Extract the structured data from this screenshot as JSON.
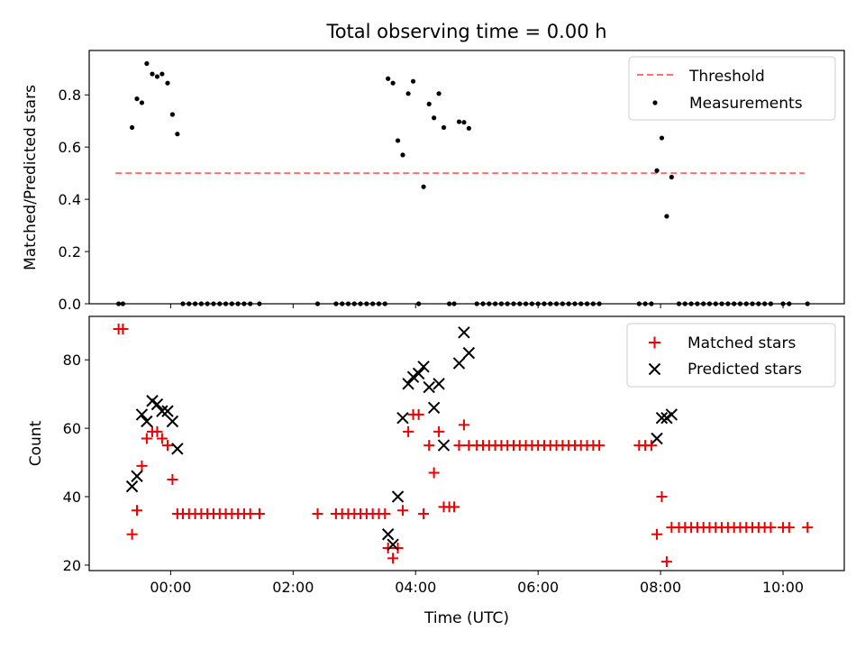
{
  "chart_data": {
    "type": "scatter",
    "title": "Total observing time = 0.00 h",
    "x_axis": {
      "label": "Time (UTC)",
      "unit": "hours",
      "range": [
        -1.33,
        11.0
      ],
      "ticks": [
        0,
        2,
        4,
        6,
        8,
        10
      ],
      "tick_labels": [
        "00:00",
        "02:00",
        "04:00",
        "06:00",
        "08:00",
        "10:00"
      ]
    },
    "panels": [
      {
        "name": "ratio",
        "ylabel": "Matched/Predicted stars",
        "ylim": [
          0,
          0.97
        ],
        "yticks": [
          0.0,
          0.2,
          0.4,
          0.6,
          0.8
        ],
        "ytick_labels": [
          "0.0",
          "0.2",
          "0.4",
          "0.6",
          "0.8"
        ],
        "legend_position": "top-right",
        "threshold": {
          "name": "Threshold",
          "value": 0.5,
          "x_range": [
            -0.9,
            10.35
          ],
          "color": "#ff7070"
        },
        "series": [
          {
            "name": "Measurements",
            "marker": "dot",
            "color": "#000000",
            "points": [
              [
                -0.85,
                0
              ],
              [
                -0.78,
                0
              ],
              [
                -0.63,
                0.675
              ],
              [
                -0.55,
                0.785
              ],
              [
                -0.47,
                0.77
              ],
              [
                -0.39,
                0.92
              ],
              [
                -0.3,
                0.88
              ],
              [
                -0.22,
                0.87
              ],
              [
                -0.14,
                0.88
              ],
              [
                -0.05,
                0.845
              ],
              [
                0.03,
                0.725
              ],
              [
                0.11,
                0.65
              ],
              [
                0.2,
                0
              ],
              [
                0.3,
                0
              ],
              [
                0.4,
                0
              ],
              [
                0.5,
                0
              ],
              [
                0.6,
                0
              ],
              [
                0.7,
                0
              ],
              [
                0.8,
                0
              ],
              [
                0.9,
                0
              ],
              [
                1.0,
                0
              ],
              [
                1.1,
                0
              ],
              [
                1.2,
                0
              ],
              [
                1.3,
                0
              ],
              [
                1.45,
                0
              ],
              [
                2.4,
                0
              ],
              [
                2.7,
                0
              ],
              [
                2.8,
                0
              ],
              [
                2.9,
                0
              ],
              [
                3.0,
                0
              ],
              [
                3.1,
                0
              ],
              [
                3.2,
                0
              ],
              [
                3.3,
                0
              ],
              [
                3.4,
                0
              ],
              [
                3.5,
                0
              ],
              [
                3.55,
                0.862
              ],
              [
                3.63,
                0.845
              ],
              [
                3.71,
                0.625
              ],
              [
                3.79,
                0.57
              ],
              [
                3.88,
                0.805
              ],
              [
                3.96,
                0.852
              ],
              [
                4.05,
                0
              ],
              [
                4.13,
                0.448
              ],
              [
                4.22,
                0.765
              ],
              [
                4.3,
                0.712
              ],
              [
                4.38,
                0.805
              ],
              [
                4.46,
                0.675
              ],
              [
                4.55,
                0
              ],
              [
                4.63,
                0
              ],
              [
                4.71,
                0.697
              ],
              [
                4.79,
                0.695
              ],
              [
                4.87,
                0.672
              ],
              [
                5.0,
                0
              ],
              [
                5.1,
                0
              ],
              [
                5.2,
                0
              ],
              [
                5.3,
                0
              ],
              [
                5.4,
                0
              ],
              [
                5.5,
                0
              ],
              [
                5.6,
                0
              ],
              [
                5.7,
                0
              ],
              [
                5.8,
                0
              ],
              [
                5.9,
                0
              ],
              [
                6.0,
                0
              ],
              [
                6.1,
                0
              ],
              [
                6.2,
                0
              ],
              [
                6.3,
                0
              ],
              [
                6.4,
                0
              ],
              [
                6.5,
                0
              ],
              [
                6.6,
                0
              ],
              [
                6.7,
                0
              ],
              [
                6.8,
                0
              ],
              [
                6.9,
                0
              ],
              [
                7.0,
                0
              ],
              [
                7.65,
                0
              ],
              [
                7.75,
                0
              ],
              [
                7.85,
                0
              ],
              [
                7.94,
                0.51
              ],
              [
                8.02,
                0.635
              ],
              [
                8.1,
                0.335
              ],
              [
                8.18,
                0.485
              ],
              [
                8.3,
                0
              ],
              [
                8.4,
                0
              ],
              [
                8.5,
                0
              ],
              [
                8.6,
                0
              ],
              [
                8.7,
                0
              ],
              [
                8.8,
                0
              ],
              [
                8.9,
                0
              ],
              [
                9.0,
                0
              ],
              [
                9.1,
                0
              ],
              [
                9.2,
                0
              ],
              [
                9.3,
                0
              ],
              [
                9.4,
                0
              ],
              [
                9.5,
                0
              ],
              [
                9.6,
                0
              ],
              [
                9.7,
                0
              ],
              [
                9.8,
                0
              ],
              [
                10.0,
                0
              ],
              [
                10.1,
                0
              ],
              [
                10.4,
                0
              ]
            ]
          }
        ]
      },
      {
        "name": "counts",
        "ylabel": "Count",
        "ylim": [
          18.4,
          92.7
        ],
        "yticks": [
          20,
          40,
          60,
          80
        ],
        "ytick_labels": [
          "20",
          "40",
          "60",
          "80"
        ],
        "legend_position": "top-right",
        "series": [
          {
            "name": "Matched stars",
            "marker": "plus",
            "color": "#ee0000",
            "points": [
              [
                -0.85,
                89
              ],
              [
                -0.78,
                89
              ],
              [
                -0.63,
                29
              ],
              [
                -0.55,
                36
              ],
              [
                -0.47,
                49
              ],
              [
                -0.39,
                57
              ],
              [
                -0.3,
                59
              ],
              [
                -0.22,
                59
              ],
              [
                -0.14,
                57
              ],
              [
                -0.05,
                55
              ],
              [
                0.03,
                45
              ],
              [
                0.11,
                35
              ],
              [
                0.2,
                35
              ],
              [
                0.3,
                35
              ],
              [
                0.4,
                35
              ],
              [
                0.5,
                35
              ],
              [
                0.6,
                35
              ],
              [
                0.7,
                35
              ],
              [
                0.8,
                35
              ],
              [
                0.9,
                35
              ],
              [
                1.0,
                35
              ],
              [
                1.1,
                35
              ],
              [
                1.2,
                35
              ],
              [
                1.3,
                35
              ],
              [
                1.45,
                35
              ],
              [
                2.4,
                35
              ],
              [
                2.7,
                35
              ],
              [
                2.8,
                35
              ],
              [
                2.9,
                35
              ],
              [
                3.0,
                35
              ],
              [
                3.1,
                35
              ],
              [
                3.2,
                35
              ],
              [
                3.3,
                35
              ],
              [
                3.4,
                35
              ],
              [
                3.5,
                35
              ],
              [
                3.55,
                25
              ],
              [
                3.63,
                22
              ],
              [
                3.71,
                25
              ],
              [
                3.79,
                36
              ],
              [
                3.88,
                59
              ],
              [
                3.96,
                64
              ],
              [
                4.05,
                64
              ],
              [
                4.13,
                35
              ],
              [
                4.22,
                55
              ],
              [
                4.3,
                47
              ],
              [
                4.38,
                59
              ],
              [
                4.46,
                37
              ],
              [
                4.55,
                37
              ],
              [
                4.63,
                37
              ],
              [
                4.71,
                55
              ],
              [
                4.79,
                61
              ],
              [
                4.87,
                55
              ],
              [
                5.0,
                55
              ],
              [
                5.1,
                55
              ],
              [
                5.2,
                55
              ],
              [
                5.3,
                55
              ],
              [
                5.4,
                55
              ],
              [
                5.5,
                55
              ],
              [
                5.6,
                55
              ],
              [
                5.7,
                55
              ],
              [
                5.8,
                55
              ],
              [
                5.9,
                55
              ],
              [
                6.0,
                55
              ],
              [
                6.1,
                55
              ],
              [
                6.2,
                55
              ],
              [
                6.3,
                55
              ],
              [
                6.4,
                55
              ],
              [
                6.5,
                55
              ],
              [
                6.6,
                55
              ],
              [
                6.7,
                55
              ],
              [
                6.8,
                55
              ],
              [
                6.9,
                55
              ],
              [
                7.0,
                55
              ],
              [
                7.65,
                55
              ],
              [
                7.75,
                55
              ],
              [
                7.85,
                55
              ],
              [
                7.94,
                29
              ],
              [
                8.02,
                40
              ],
              [
                8.1,
                21
              ],
              [
                8.18,
                31
              ],
              [
                8.3,
                31
              ],
              [
                8.4,
                31
              ],
              [
                8.5,
                31
              ],
              [
                8.6,
                31
              ],
              [
                8.7,
                31
              ],
              [
                8.8,
                31
              ],
              [
                8.9,
                31
              ],
              [
                9.0,
                31
              ],
              [
                9.1,
                31
              ],
              [
                9.2,
                31
              ],
              [
                9.3,
                31
              ],
              [
                9.4,
                31
              ],
              [
                9.5,
                31
              ],
              [
                9.6,
                31
              ],
              [
                9.7,
                31
              ],
              [
                9.8,
                31
              ],
              [
                10.0,
                31
              ],
              [
                10.1,
                31
              ],
              [
                10.4,
                31
              ]
            ]
          },
          {
            "name": "Predicted stars",
            "marker": "x",
            "color": "#000000",
            "points": [
              [
                -0.63,
                43
              ],
              [
                -0.55,
                46
              ],
              [
                -0.47,
                64
              ],
              [
                -0.39,
                62
              ],
              [
                -0.3,
                68
              ],
              [
                -0.22,
                67
              ],
              [
                -0.14,
                65
              ],
              [
                -0.05,
                65
              ],
              [
                0.03,
                62
              ],
              [
                0.11,
                54
              ],
              [
                3.55,
                29
              ],
              [
                3.63,
                26
              ],
              [
                3.71,
                40
              ],
              [
                3.79,
                63
              ],
              [
                3.88,
                73
              ],
              [
                3.96,
                75
              ],
              [
                4.05,
                76
              ],
              [
                4.13,
                78
              ],
              [
                4.22,
                72
              ],
              [
                4.3,
                66
              ],
              [
                4.38,
                73
              ],
              [
                4.46,
                55
              ],
              [
                4.71,
                79
              ],
              [
                4.79,
                88
              ],
              [
                4.87,
                82
              ],
              [
                7.94,
                57
              ],
              [
                8.02,
                63
              ],
              [
                8.1,
                63
              ],
              [
                8.18,
                64
              ]
            ]
          }
        ]
      }
    ]
  }
}
